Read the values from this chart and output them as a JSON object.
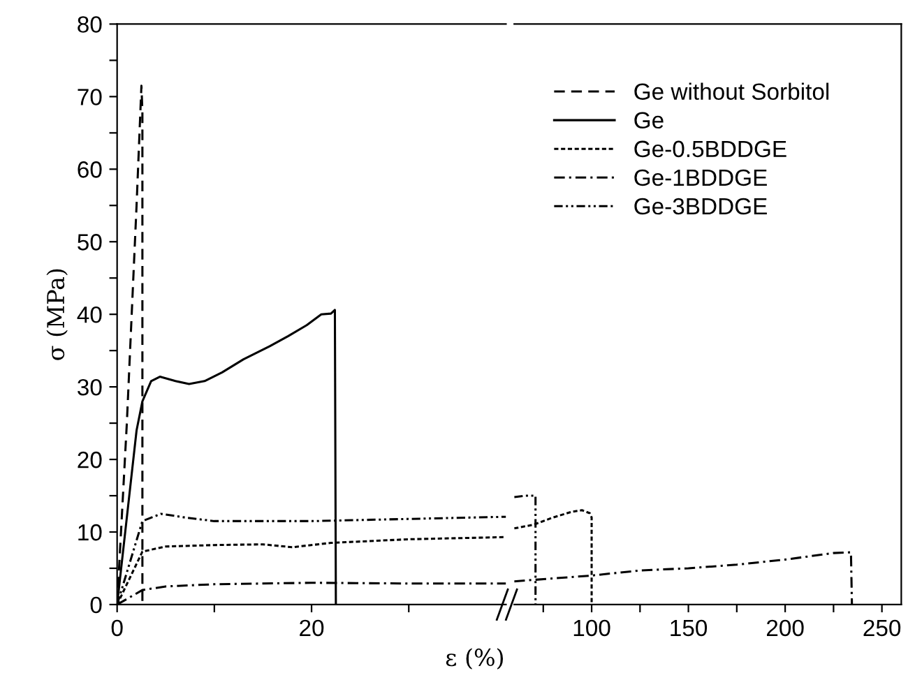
{
  "chart_data": [
    {
      "type": "line",
      "ylabel": "σ (MPa)",
      "xlabel": "ε (%)",
      "xlim": [
        0,
        40
      ],
      "xticks": [
        0,
        {
          "value": 10,
          "label": null
        },
        20,
        {
          "value": 30,
          "label": null
        }
      ],
      "ylim": [
        0,
        80
      ],
      "yticks": [
        0,
        {
          "value": 5,
          "label": null
        },
        10,
        {
          "value": 15,
          "label": null
        },
        20,
        {
          "value": 25,
          "label": null
        },
        30,
        {
          "value": 35,
          "label": null
        },
        40,
        {
          "value": 45,
          "label": null
        },
        50,
        {
          "value": 55,
          "label": null
        },
        60,
        {
          "value": 65,
          "label": null
        },
        70,
        {
          "value": 75,
          "label": null
        },
        80
      ],
      "legend": "top right",
      "grid": false,
      "series": [
        {
          "name": "Ge without Sorbitol",
          "color": "#000000",
          "line_style": "dashed",
          "x": [
            0,
            1,
            2,
            2.5,
            2.6,
            2.6
          ],
          "values": [
            0,
            25,
            55,
            71.5,
            68,
            0
          ]
        },
        {
          "name": "Ge",
          "color": "#000000",
          "line_style": "solid",
          "x": [
            0,
            1,
            2,
            2.6,
            3.5,
            4.4,
            6,
            7.4,
            9,
            10.8,
            13,
            15.7,
            17.6,
            19.5,
            21,
            22,
            22.4,
            22.5
          ],
          "values": [
            0,
            12,
            24,
            28,
            30.8,
            31.4,
            30.8,
            30.4,
            30.8,
            32,
            33.8,
            35.6,
            37,
            38.5,
            40,
            40.1,
            40.6,
            0
          ]
        },
        {
          "name": "Ge-0.5BDDGE",
          "color": "#000000",
          "line_style": "dotted",
          "x": [
            0,
            2.6,
            5,
            10,
            15,
            18,
            22,
            30,
            40
          ],
          "values": [
            0,
            7.3,
            8,
            8.2,
            8.3,
            7.9,
            8.5,
            9,
            9.3
          ]
        },
        {
          "name": "Ge-1BDDGE",
          "color": "#000000",
          "line_style": "dashdot",
          "x": [
            0,
            2.6,
            5,
            10,
            20,
            30,
            40
          ],
          "values": [
            0,
            2,
            2.5,
            2.8,
            3,
            2.9,
            2.9
          ]
        },
        {
          "name": "Ge-3BDDGE",
          "color": "#000000",
          "line_style": "dashdotdot",
          "x": [
            0,
            2.6,
            4.5,
            7,
            10,
            20,
            30,
            40
          ],
          "values": [
            0,
            11.5,
            12.5,
            12,
            11.5,
            11.5,
            11.8,
            12.1
          ]
        }
      ]
    },
    {
      "type": "line",
      "xlim": [
        60,
        260
      ],
      "xticks": [
        {
          "value": 75,
          "label": null
        },
        100,
        {
          "value": 125,
          "label": null
        },
        150,
        {
          "value": 175,
          "label": null
        },
        200,
        {
          "value": 225,
          "label": null
        },
        250
      ],
      "ylim": [
        0,
        80
      ],
      "tick_labels": "x",
      "grid": false,
      "series": [
        {
          "color": "#000000",
          "line_style": "dotted",
          "x": [
            60,
            70,
            80,
            90,
            95,
            99,
            100,
            100
          ],
          "values": [
            10.5,
            11,
            12,
            12.8,
            13,
            12.6,
            12,
            0
          ]
        },
        {
          "color": "#000000",
          "line_style": "dashdot",
          "x": [
            60,
            80,
            100,
            125,
            150,
            175,
            200,
            225,
            234,
            234.5
          ],
          "values": [
            3.2,
            3.6,
            4,
            4.7,
            5,
            5.5,
            6.2,
            7.1,
            7.2,
            0
          ]
        },
        {
          "color": "#000000",
          "line_style": "dashdotdot",
          "x": [
            60,
            66,
            71,
            71
          ],
          "values": [
            14.8,
            15,
            15,
            0
          ]
        }
      ]
    }
  ]
}
